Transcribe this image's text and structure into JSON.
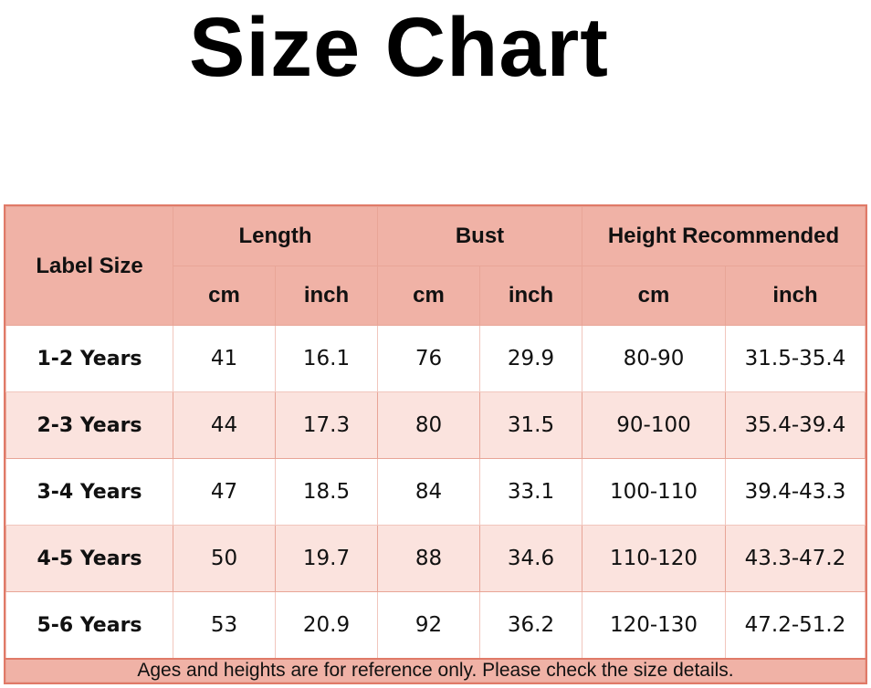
{
  "title": "Size Chart",
  "table": {
    "label_header": "Label Size",
    "groups": [
      "Length",
      "Bust",
      "Height Recommended"
    ],
    "units": [
      "cm",
      "inch",
      "cm",
      "inch",
      "cm",
      "inch"
    ],
    "rows": [
      [
        "1-2 Years",
        "41",
        "16.1",
        "76",
        "29.9",
        "80-90",
        "31.5-35.4"
      ],
      [
        "2-3 Years",
        "44",
        "17.3",
        "80",
        "31.5",
        "90-100",
        "35.4-39.4"
      ],
      [
        "3-4 Years",
        "47",
        "18.5",
        "84",
        "33.1",
        "100-110",
        "39.4-43.3"
      ],
      [
        "4-5 Years",
        "50",
        "19.7",
        "88",
        "34.6",
        "110-120",
        "43.3-47.2"
      ],
      [
        "5-6 Years",
        "53",
        "20.9",
        "92",
        "36.2",
        "120-130",
        "47.2-51.2"
      ]
    ],
    "footer": "Ages and heights are for reference only. Please check the size details."
  },
  "colors": {
    "header": "#f0b2a6",
    "alt_row": "#fbe3de",
    "border": "#e07a68"
  }
}
